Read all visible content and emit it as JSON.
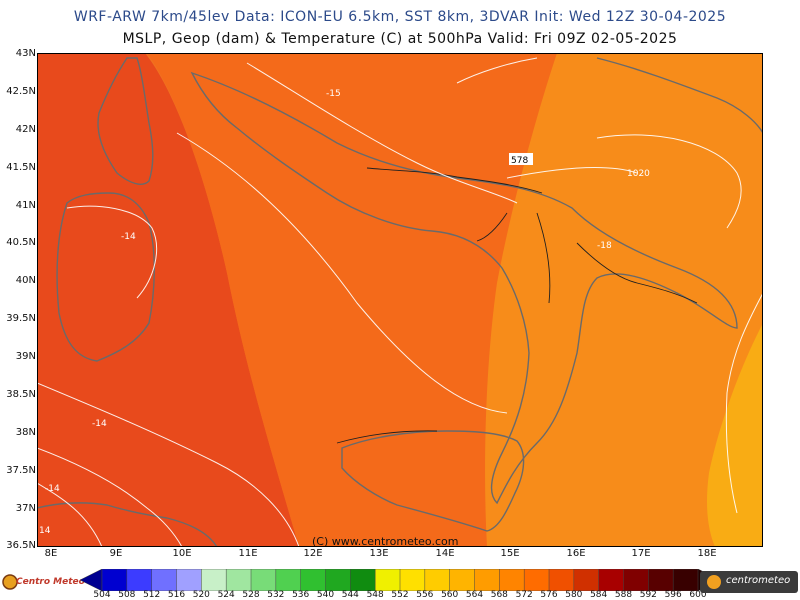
{
  "header": {
    "title_line1": "WRF-ARW 7km/45lev   Data: ICON-EU 6.5km, SST 8km, 3DVAR   Init: Wed 12Z 30-04-2025",
    "title_line2": "MSLP, Geop (dam) & Temperature (C) at 500hPa   Valid: Fri 09Z 02-05-2025"
  },
  "lat_labels": [
    "43N",
    "42.5N",
    "42N",
    "41.5N",
    "41N",
    "40.5N",
    "40N",
    "39.5N",
    "39N",
    "38.5N",
    "38N",
    "37.5N",
    "37N",
    "36.5N"
  ],
  "lon_labels": [
    "8E",
    "9E",
    "10E",
    "11E",
    "12E",
    "13E",
    "14E",
    "15E",
    "16E",
    "17E",
    "18E"
  ],
  "map": {
    "copyright": "(C) www.centrometeo.com",
    "contour_labels": [
      "-15",
      "578",
      "1020",
      "-14",
      "-18",
      "-14",
      "-14",
      "14"
    ]
  },
  "colorbar": {
    "ticks": [
      "504",
      "508",
      "512",
      "516",
      "520",
      "524",
      "528",
      "532",
      "536",
      "540",
      "544",
      "548",
      "552",
      "556",
      "560",
      "564",
      "568",
      "572",
      "576",
      "580",
      "584",
      "588",
      "592",
      "596",
      "600"
    ],
    "colors": [
      "#000090",
      "#0000d0",
      "#3c3cff",
      "#7070ff",
      "#a0a0ff",
      "#c8f0c8",
      "#a0e6a0",
      "#78dc78",
      "#50d050",
      "#30c030",
      "#20a820",
      "#108c10",
      "#f0f000",
      "#ffe000",
      "#ffcc00",
      "#ffb400",
      "#ff9c00",
      "#ff8400",
      "#ff6c00",
      "#f05000",
      "#d03000",
      "#a80000",
      "#800000",
      "#580000",
      "#380000",
      "#200000"
    ]
  },
  "logos": {
    "left": "Centro Meteo Italiano",
    "right": "centrometeo"
  }
}
